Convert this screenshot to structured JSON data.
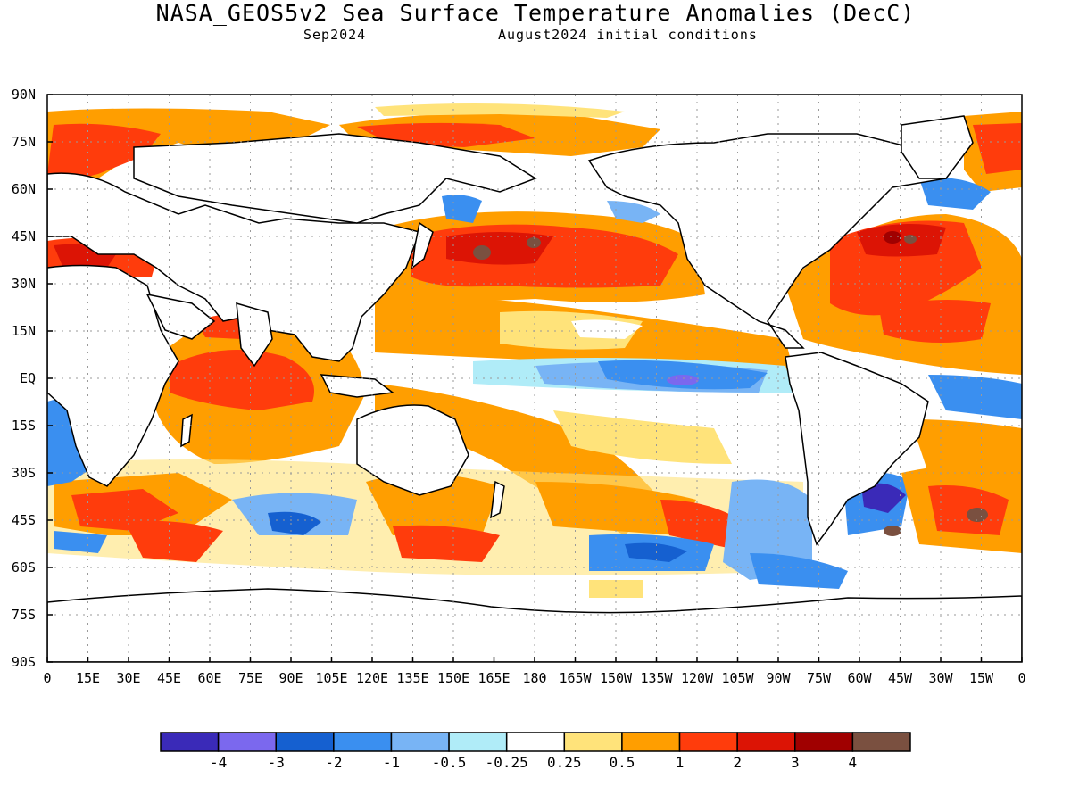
{
  "header": {
    "title": "NASA_GEOS5v2 Sea Surface Temperature Anomalies (DecC)",
    "subtitle_left": "Sep2024",
    "subtitle_right": "August2024 initial conditions"
  },
  "map": {
    "lat_labels": [
      "90N",
      "75N",
      "60N",
      "45N",
      "30N",
      "15N",
      "EQ",
      "15S",
      "30S",
      "45S",
      "60S",
      "75S",
      "90S"
    ],
    "lon_labels": [
      "0",
      "15E",
      "30E",
      "45E",
      "60E",
      "75E",
      "90E",
      "105E",
      "120E",
      "135E",
      "150E",
      "165E",
      "180",
      "165W",
      "150W",
      "135W",
      "120W",
      "105W",
      "90W",
      "75W",
      "60W",
      "45W",
      "30W",
      "15W",
      "0"
    ],
    "projection": "equirectangular, 0 to 360 longitude, 90N to 90S"
  },
  "chart_data": {
    "type": "heatmap",
    "title": "NASA_GEOS5v2 Sea Surface Temperature Anomalies (DecC)",
    "colorbar": {
      "labels": [
        "-4",
        "-3",
        "-2",
        "-1",
        "-0.5",
        "-0.25",
        "0.25",
        "0.5",
        "1",
        "2",
        "3",
        "4"
      ],
      "colors": [
        "#3a2ab8",
        "#7b68ee",
        "#1560d0",
        "#3a8ff0",
        "#78b4f5",
        "#b0ecf8",
        "#ffffff",
        "#ffe37a",
        "#ff9e00",
        "#ff3c0c",
        "#dc1405",
        "#a00000",
        "#7a5040"
      ]
    }
  },
  "colors": {
    "land": "#ffffff",
    "coast": "#000000",
    "grid": "#9a9a9a"
  }
}
